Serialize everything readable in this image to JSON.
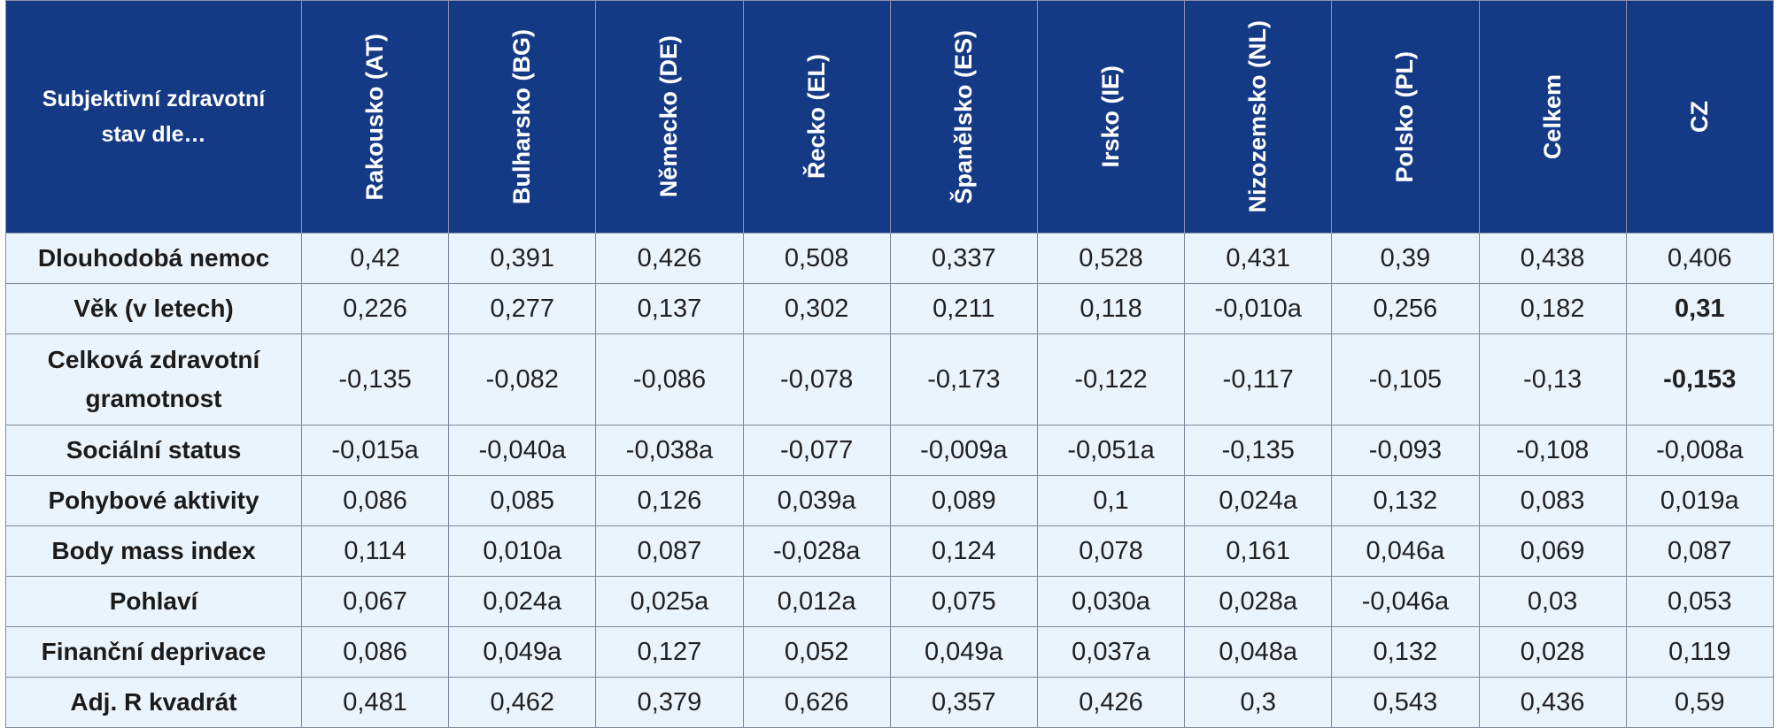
{
  "table": {
    "corner_label": "Subjektivní zdravotní stav dle…",
    "columns": [
      "Rakousko (AT)",
      "Bulharsko (BG)",
      "Německo (DE)",
      "Řecko (EL)",
      "Španělsko (ES)",
      "Irsko (IE)",
      "Nizozemsko (NL)",
      "Polsko (PL)",
      "Celkem",
      "CZ"
    ],
    "rows": [
      {
        "label": "Dlouhodobá nemoc",
        "values": [
          "0,42",
          "0,391",
          "0,426",
          "0,508",
          "0,337",
          "0,528",
          "0,431",
          "0,39",
          "0,438",
          "0,406"
        ]
      },
      {
        "label": "Věk (v letech)",
        "values": [
          "0,226",
          "0,277",
          "0,137",
          "0,302",
          "0,211",
          "0,118",
          "-0,010a",
          "0,256",
          "0,182",
          "0,31"
        ]
      },
      {
        "label": "Celková zdravotní gramotnost",
        "values": [
          "-0,135",
          "-0,082",
          "-0,086",
          "-0,078",
          "-0,173",
          "-0,122",
          "-0,117",
          "-0,105",
          "-0,13",
          "-0,153"
        ]
      },
      {
        "label": "Sociální status",
        "values": [
          "-0,015a",
          "-0,040a",
          "-0,038a",
          "-0,077",
          "-0,009a",
          "-0,051a",
          "-0,135",
          "-0,093",
          "-0,108",
          "-0,008a"
        ]
      },
      {
        "label": "Pohybové aktivity",
        "values": [
          "0,086",
          "0,085",
          "0,126",
          "0,039a",
          "0,089",
          "0,1",
          "0,024a",
          "0,132",
          "0,083",
          "0,019a"
        ]
      },
      {
        "label": "Body mass index",
        "values": [
          "0,114",
          "0,010a",
          "0,087",
          "-0,028a",
          "0,124",
          "0,078",
          "0,161",
          "0,046a",
          "0,069",
          "0,087"
        ]
      },
      {
        "label": "Pohlaví",
        "values": [
          "0,067",
          "0,024a",
          "0,025a",
          "0,012a",
          "0,075",
          "0,030a",
          "0,028a",
          "-0,046a",
          "0,03",
          "0,053"
        ]
      },
      {
        "label": "Finanční deprivace",
        "values": [
          "0,086",
          "0,049a",
          "0,127",
          "0,052",
          "0,049a",
          "0,037a",
          "0,048a",
          "0,132",
          "0,028",
          "0,119"
        ]
      },
      {
        "label": "Adj. R kvadrát",
        "values": [
          "0,481",
          "0,462",
          "0,379",
          "0,626",
          "0,357",
          "0,426",
          "0,3",
          "0,543",
          "0,436",
          "0,59"
        ]
      }
    ]
  }
}
